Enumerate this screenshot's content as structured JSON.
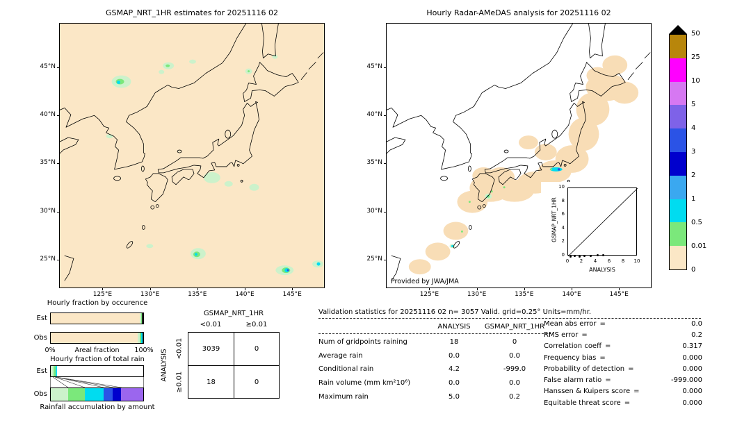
{
  "figure": {
    "left_map_title": "GSMAP_NRT_1HR estimates for 20251116 02",
    "right_map_title": "Hourly Radar-AMeDAS analysis for 20251116 02",
    "credit": "Provided by JWA/JMA",
    "lat_ticks": [
      "45°N",
      "40°N",
      "35°N",
      "30°N",
      "25°N"
    ],
    "lon_ticks": [
      "125°E",
      "130°E",
      "135°E",
      "140°E",
      "145°E"
    ]
  },
  "inset": {
    "ylabel": "GSMAP_NRT_1HR",
    "xlabel": "ANALYSIS",
    "ticks": [
      "0",
      "2",
      "4",
      "6",
      "8",
      "10"
    ]
  },
  "colorbar": {
    "unit_labels": [
      "50",
      "25",
      "10",
      "5",
      "4",
      "3",
      "2",
      "1",
      "0.5",
      "0.01",
      "0"
    ],
    "colors": [
      "#b8860b",
      "#ff00ff",
      "#d678f2",
      "#7e62e8",
      "#2b53e6",
      "#0000cd",
      "#3aa8f0",
      "#00dcf0",
      "#7be87b",
      "#fbe7c6"
    ],
    "overflow_marker": "black-triangle"
  },
  "occurrence": {
    "title": "Hourly fraction by occurence",
    "row_labels": [
      "Est",
      "Obs"
    ],
    "x_left": "0%",
    "x_label": "Areal fraction",
    "x_right": "100%",
    "est_segments": [
      {
        "color": "#fbe7c6",
        "pct": 96.0
      },
      {
        "color": "#ccf2cb",
        "pct": 1.5
      },
      {
        "color": "#7be87b",
        "pct": 0.8
      },
      {
        "color": "#222222",
        "pct": 1.7
      }
    ],
    "obs_segments": [
      {
        "color": "#fbe7c6",
        "pct": 93.9
      },
      {
        "color": "#ccf2cb",
        "pct": 2.5
      },
      {
        "color": "#7be87b",
        "pct": 1.5
      },
      {
        "color": "#00dcf0",
        "pct": 1.0
      },
      {
        "color": "#222222",
        "pct": 1.1
      }
    ]
  },
  "totalrain": {
    "title": "Hourly fraction of total rain",
    "row_labels": [
      "Est",
      "Obs"
    ],
    "footer": "Rainfall accumulation by amount",
    "est_segments": [
      {
        "color": "#ccf2cb",
        "pct": 3.0
      },
      {
        "color": "#7be87b",
        "pct": 2.0
      },
      {
        "color": "#00dcf0",
        "pct": 1.5
      },
      {
        "color": "#ffffff",
        "pct": 93.5
      }
    ],
    "obs_segments": [
      {
        "color": "#ccf2cb",
        "pct": 19
      },
      {
        "color": "#7be87b",
        "pct": 18
      },
      {
        "color": "#00dcf0",
        "pct": 20
      },
      {
        "color": "#2b53e6",
        "pct": 10
      },
      {
        "color": "#0000cd",
        "pct": 9
      },
      {
        "color": "#9b66ee",
        "pct": 24
      }
    ]
  },
  "contingency": {
    "col_group": "GSMAP_NRT_1HR",
    "row_group": "ANALYSIS",
    "col_labels": [
      "<0.01",
      "≥0.01"
    ],
    "row_labels": [
      "<0.01",
      "≥0.01"
    ],
    "cells": [
      [
        "3039",
        "0"
      ],
      [
        "18",
        "0"
      ]
    ]
  },
  "stats": {
    "header": "Validation statistics for 20251116 02  n= 3057 Valid. grid=0.25° Units=mm/hr.",
    "col_headers": [
      "ANALYSIS",
      "GSMAP_NRT_1HR"
    ],
    "eq": "=",
    "rows": [
      {
        "label": "Num of gridpoints raining",
        "a": "18",
        "g": "0"
      },
      {
        "label": "Average rain",
        "a": "0.0",
        "g": "0.0"
      },
      {
        "label": "Conditional rain",
        "a": "4.2",
        "g": "-999.0"
      },
      {
        "label": "Rain volume (mm km²10⁶)",
        "a": "0.0",
        "g": "0.0"
      },
      {
        "label": "Maximum rain",
        "a": "5.0",
        "g": "0.2"
      }
    ],
    "scores": [
      {
        "label": "Mean abs error",
        "value": "0.0"
      },
      {
        "label": "RMS error",
        "value": "0.2"
      },
      {
        "label": "Correlation coeff",
        "value": "0.317"
      },
      {
        "label": "Frequency bias",
        "value": "0.000"
      },
      {
        "label": "Probability of detection",
        "value": "0.000"
      },
      {
        "label": "False alarm ratio",
        "value": "-999.000"
      },
      {
        "label": "Hanssen & Kuipers score",
        "value": "0.000"
      },
      {
        "label": "Equitable threat score",
        "value": "0.000"
      }
    ]
  },
  "chart_data": [
    {
      "type": "scale",
      "name": "rain_rate_colorbar",
      "units": "mm/hr",
      "boundaries": [
        0,
        0.01,
        0.5,
        1,
        2,
        3,
        4,
        5,
        10,
        25,
        50
      ],
      "overflow": ">50 shown as black triangle"
    },
    {
      "type": "table",
      "name": "contingency_table",
      "col_group": "GSMAP_NRT_1HR",
      "row_group": "ANALYSIS",
      "col_labels": [
        "<0.01",
        "≥0.01"
      ],
      "row_labels": [
        "<0.01",
        "≥0.01"
      ],
      "values": [
        [
          3039,
          0
        ],
        [
          18,
          0
        ]
      ]
    },
    {
      "type": "table",
      "name": "validation_statistics",
      "title": "Validation statistics for 20251116 02",
      "n": 3057,
      "grid": "0.25°",
      "units": "mm/hr",
      "columns": [
        "ANALYSIS",
        "GSMAP_NRT_1HR"
      ],
      "rows": [
        [
          "Num of gridpoints raining",
          18,
          0
        ],
        [
          "Average rain",
          0.0,
          0.0
        ],
        [
          "Conditional rain",
          4.2,
          -999.0
        ],
        [
          "Rain volume (mm km²10⁶)",
          0.0,
          0.0
        ],
        [
          "Maximum rain",
          5.0,
          0.2
        ]
      ]
    },
    {
      "type": "table",
      "name": "skill_scores",
      "rows": [
        [
          "Mean abs error",
          0.0
        ],
        [
          "RMS error",
          0.2
        ],
        [
          "Correlation coeff",
          0.317
        ],
        [
          "Frequency bias",
          0.0
        ],
        [
          "Probability of detection",
          0.0
        ],
        [
          "False alarm ratio",
          -999.0
        ],
        [
          "Hanssen & Kuipers score",
          0.0
        ],
        [
          "Equitable threat score",
          0.0
        ]
      ]
    },
    {
      "type": "bar",
      "name": "hourly_fraction_by_occurence",
      "orientation": "horizontal_stacked",
      "categories": [
        "Est",
        "Obs"
      ],
      "xlabel": "Areal fraction",
      "xlim_labels": [
        "0%",
        "100%"
      ],
      "est_values_pct": [
        96.0,
        1.5,
        0.8,
        1.7
      ],
      "obs_values_pct": [
        93.9,
        2.5,
        1.5,
        1.0,
        1.1
      ],
      "note": "segment widths estimated from pixels"
    },
    {
      "type": "bar",
      "name": "hourly_fraction_of_total_rain",
      "orientation": "horizontal_stacked",
      "categories": [
        "Est",
        "Obs"
      ],
      "footer": "Rainfall accumulation by amount",
      "est_values_pct": [
        3.0,
        2.0,
        1.5,
        93.5
      ],
      "obs_values_pct": [
        19,
        18,
        20,
        10,
        9,
        24
      ],
      "note": "segment widths estimated from pixels"
    },
    {
      "type": "scatter",
      "name": "gsmap_vs_analysis",
      "xlabel": "ANALYSIS",
      "ylabel": "GSMAP_NRT_1HR",
      "xlim": [
        0,
        10
      ],
      "ylim": [
        0,
        10
      ],
      "xticks": [
        0,
        2,
        4,
        6,
        8,
        10
      ],
      "yticks": [
        0,
        2,
        4,
        6,
        8,
        10
      ],
      "diagonal_line": true,
      "points": [
        [
          0.3,
          0.0
        ],
        [
          0.9,
          0.05
        ],
        [
          1.6,
          0.0
        ],
        [
          2.3,
          0.1
        ],
        [
          3.2,
          0.05
        ],
        [
          4.2,
          0.2
        ],
        [
          5.0,
          0.2
        ]
      ],
      "note": "points clustered near origin; estimated"
    }
  ]
}
